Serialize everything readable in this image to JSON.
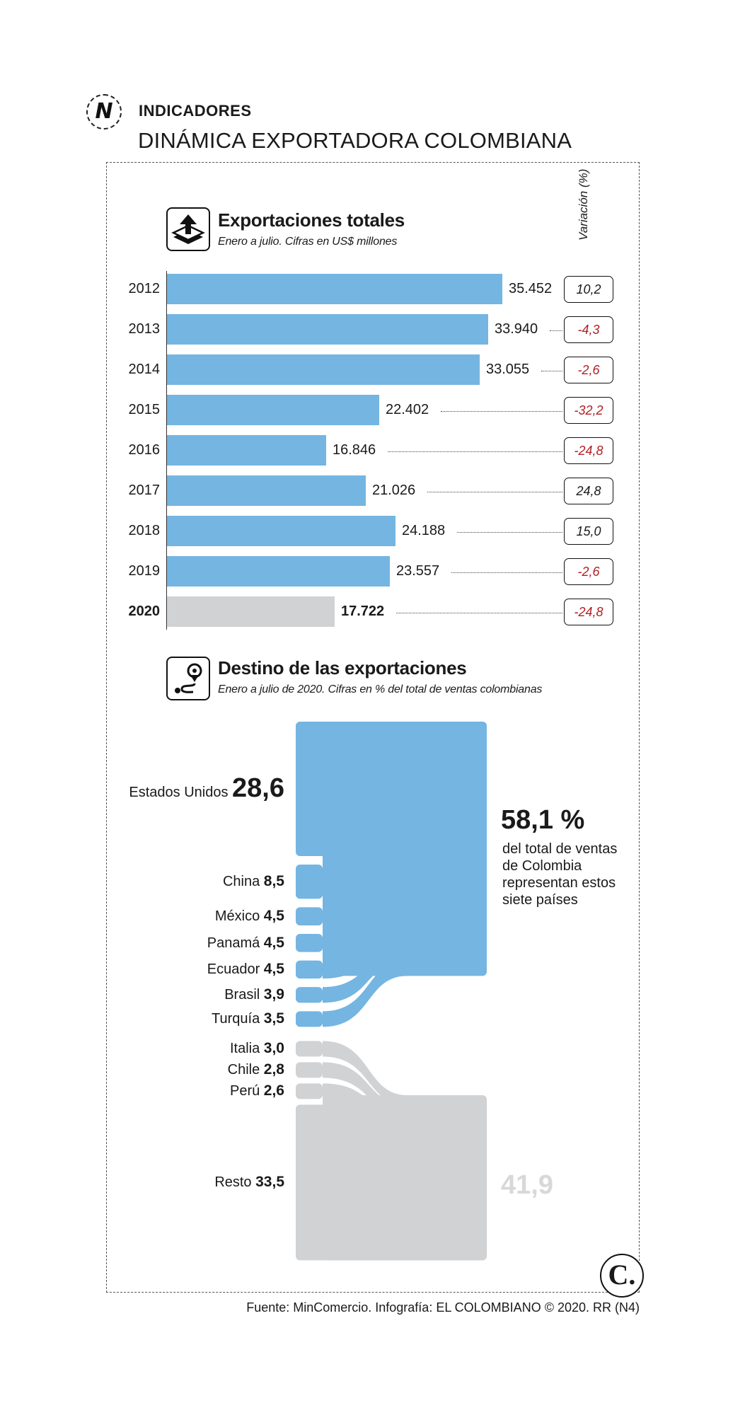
{
  "header": {
    "logo_letter": "N",
    "kicker": "INDICADORES",
    "title": "DINÁMICA EXPORTADORA COLOMBIANA"
  },
  "colors": {
    "bar_blue": "#74b5e2",
    "bar_gray": "#d1d2d4",
    "negative_red": "#b01e23"
  },
  "exports_section": {
    "icon": "export-box-icon",
    "title": "Exportaciones totales",
    "subtitle": "Enero a julio. Cifras en US$ millones",
    "variation_header": "Variación (%)"
  },
  "destinations_section": {
    "icon": "map-route-icon",
    "title": "Destino de las exportaciones",
    "subtitle": "Enero a julio de 2020. Cifras en % del total de ventas colombianas",
    "top_share_value": "58,1 %",
    "top_share_note": "del total de ventas de Colombia representan estos siete países",
    "rest_share_value": "41,9"
  },
  "chart_data": [
    {
      "type": "bar",
      "orientation": "horizontal",
      "title": "Exportaciones totales",
      "subtitle": "Enero a julio. Cifras en US$ millones",
      "categories": [
        "2012",
        "2013",
        "2014",
        "2015",
        "2016",
        "2017",
        "2018",
        "2019",
        "2020"
      ],
      "values": [
        35452,
        33940,
        33055,
        22402,
        16846,
        21026,
        24188,
        23557,
        17722
      ],
      "value_labels": [
        "35.452",
        "33.940",
        "33.055",
        "22.402",
        "16.846",
        "21.026",
        "24.188",
        "23.557",
        "17.722"
      ],
      "variation_header": "Variación (%)",
      "variation_pct": [
        10.2,
        -4.3,
        -2.6,
        -32.2,
        -24.8,
        24.8,
        15.0,
        -2.6,
        -24.8
      ],
      "variation_labels": [
        "10,2",
        "-4,3",
        "-2,6",
        "-32,2",
        "-24,8",
        "24,8",
        "15,0",
        "-2,6",
        "-24,8"
      ],
      "highlight_category": "2020",
      "xlim": [
        0,
        35452
      ]
    },
    {
      "type": "sankey",
      "title": "Destino de las exportaciones",
      "subtitle": "Enero a julio de 2020. Cifras en % del total de ventas colombianas",
      "nodes": [
        {
          "name": "Estados Unidos",
          "label": "28,6",
          "value": 28.6,
          "group": "top"
        },
        {
          "name": "China",
          "label": "8,5",
          "value": 8.5,
          "group": "top"
        },
        {
          "name": "México",
          "label": "4,5",
          "value": 4.5,
          "group": "top"
        },
        {
          "name": "Panamá",
          "label": "4,5",
          "value": 4.5,
          "group": "top"
        },
        {
          "name": "Ecuador",
          "label": "4,5",
          "value": 4.5,
          "group": "top"
        },
        {
          "name": "Brasil",
          "label": "3,9",
          "value": 3.9,
          "group": "top"
        },
        {
          "name": "Turquía",
          "label": "3,5",
          "value": 3.5,
          "group": "top"
        },
        {
          "name": "Italia",
          "label": "3,0",
          "value": 3.0,
          "group": "rest"
        },
        {
          "name": "Chile",
          "label": "2,8",
          "value": 2.8,
          "group": "rest"
        },
        {
          "name": "Perú",
          "label": "2,6",
          "value": 2.6,
          "group": "rest"
        },
        {
          "name": "Resto",
          "label": "33,5",
          "value": 33.5,
          "group": "rest"
        }
      ],
      "totals": [
        {
          "group": "top",
          "label": "58,1 %",
          "value": 58.1
        },
        {
          "group": "rest",
          "label": "41,9",
          "value": 41.9
        }
      ]
    }
  ],
  "footer": {
    "source": "Fuente: MinComercio. Infografía: EL COLOMBIANO © 2020. RR (N4)",
    "brand_logo": "C."
  }
}
